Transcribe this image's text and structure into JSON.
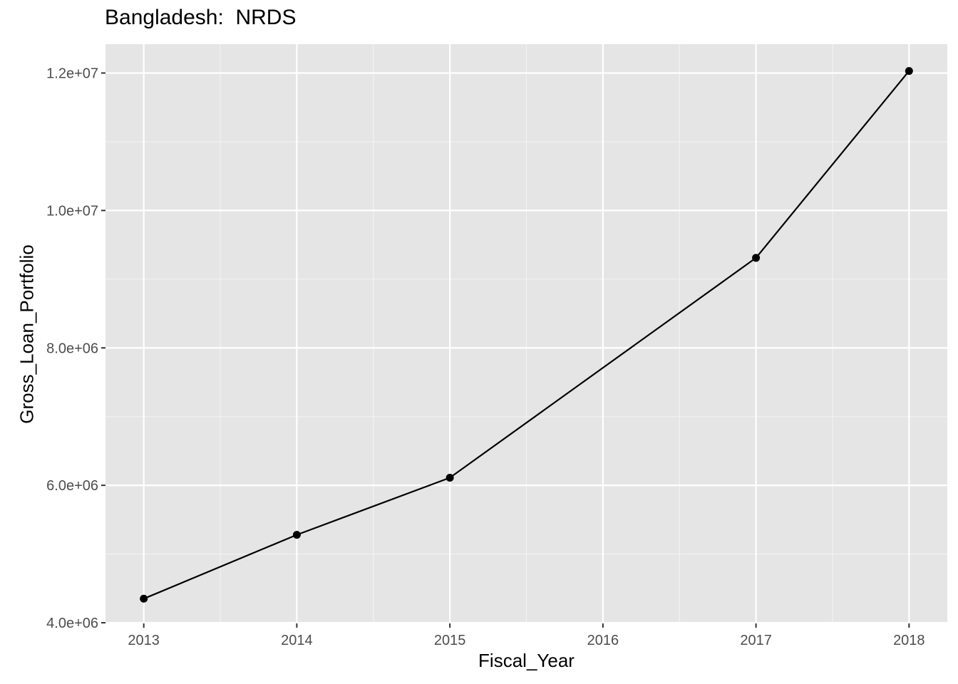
{
  "chart_data": {
    "type": "line",
    "title": "Bangladesh:  NRDS",
    "xlabel": "Fiscal_Year",
    "ylabel": "Gross_Loan_Portfolio",
    "x": [
      2013,
      2014,
      2015,
      2017,
      2018
    ],
    "values": [
      4350000,
      5280000,
      6110000,
      9310000,
      12030000
    ],
    "xticks": [
      2013,
      2014,
      2015,
      2016,
      2017,
      2018
    ],
    "xtick_labels": [
      "2013",
      "2014",
      "2015",
      "2016",
      "2017",
      "2018"
    ],
    "yticks": [
      4000000,
      6000000,
      8000000,
      10000000,
      12000000
    ],
    "ytick_labels": [
      "4.0e+06",
      "6.0e+06",
      "8.0e+06",
      "1.0e+07",
      "1.2e+07"
    ],
    "xlim": [
      2012.75,
      2018.25
    ],
    "ylim": [
      3990000,
      12420000
    ],
    "grid": true,
    "colors": {
      "panel": "#e5e5e5",
      "grid_major": "#ffffff",
      "grid_minor": "#f2f2f2",
      "line": "#000000",
      "tick_text": "#4d4d4d"
    }
  }
}
